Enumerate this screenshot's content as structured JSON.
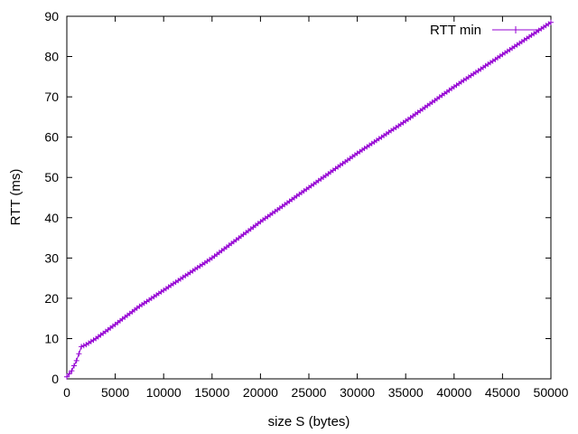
{
  "chart_data": {
    "type": "line",
    "title": "",
    "xlabel": "size S (bytes)",
    "ylabel": "RTT (ms)",
    "xlim": [
      0,
      50000
    ],
    "ylim": [
      0,
      90
    ],
    "xticks": [
      0,
      5000,
      10000,
      15000,
      20000,
      25000,
      30000,
      35000,
      40000,
      45000,
      50000
    ],
    "yticks": [
      0,
      10,
      20,
      30,
      40,
      50,
      60,
      70,
      80,
      90
    ],
    "grid": false,
    "legend_position": "top-right",
    "series": [
      {
        "name": "RTT min",
        "color": "#9400d3",
        "marker": "plus",
        "x": [
          0,
          500,
          1000,
          1500,
          2000,
          3000,
          5000,
          7500,
          10000,
          15000,
          20000,
          25000,
          30000,
          35000,
          40000,
          45000,
          50000
        ],
        "y": [
          0.5,
          2.0,
          4.5,
          8.0,
          8.5,
          10.0,
          13.5,
          18.0,
          22.0,
          30.0,
          39.0,
          47.5,
          56.0,
          64.0,
          72.5,
          80.5,
          88.5
        ]
      }
    ]
  }
}
